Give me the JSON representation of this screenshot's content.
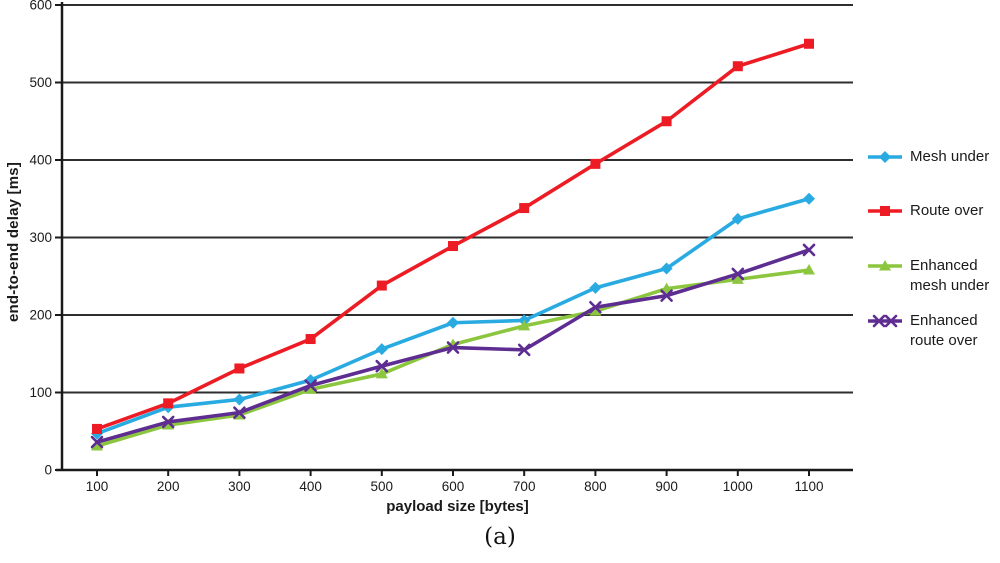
{
  "figure": {
    "caption": "(a)"
  },
  "chart_data": {
    "type": "line",
    "title": "",
    "xlabel": "payload size [bytes]",
    "ylabel": "end-to-end delay [ms]",
    "x": [
      100,
      200,
      300,
      400,
      500,
      600,
      700,
      800,
      900,
      1000,
      1100
    ],
    "x_ticks": [
      100,
      200,
      300,
      400,
      500,
      600,
      700,
      800,
      900,
      1000,
      1100
    ],
    "y_ticks": [
      0,
      100,
      200,
      300,
      400,
      500,
      600
    ],
    "ylim": [
      0,
      600
    ],
    "grid": "horizontal",
    "legend_position": "right",
    "axis_color": "#1a1a1a",
    "gridline_color": "#2e2e2e",
    "series": [
      {
        "name": "Mesh under",
        "color": "#29ABE2",
        "marker": "diamond",
        "values": [
          47,
          81,
          91,
          116,
          156,
          190,
          193,
          235,
          260,
          324,
          350
        ]
      },
      {
        "name": "Route over",
        "color": "#ED1C24",
        "marker": "square",
        "values": [
          53,
          86,
          131,
          169,
          238,
          289,
          338,
          395,
          450,
          521,
          550
        ]
      },
      {
        "name": "Enhanced mesh under",
        "color": "#8CC63F",
        "marker": "triangle",
        "values": [
          31,
          58,
          71,
          104,
          124,
          162,
          186,
          205,
          234,
          246,
          258
        ]
      },
      {
        "name": "Enhanced route over",
        "color": "#5E2D91",
        "marker": "x",
        "values": [
          36,
          62,
          74,
          109,
          134,
          158,
          155,
          210,
          225,
          253,
          284
        ]
      }
    ]
  }
}
